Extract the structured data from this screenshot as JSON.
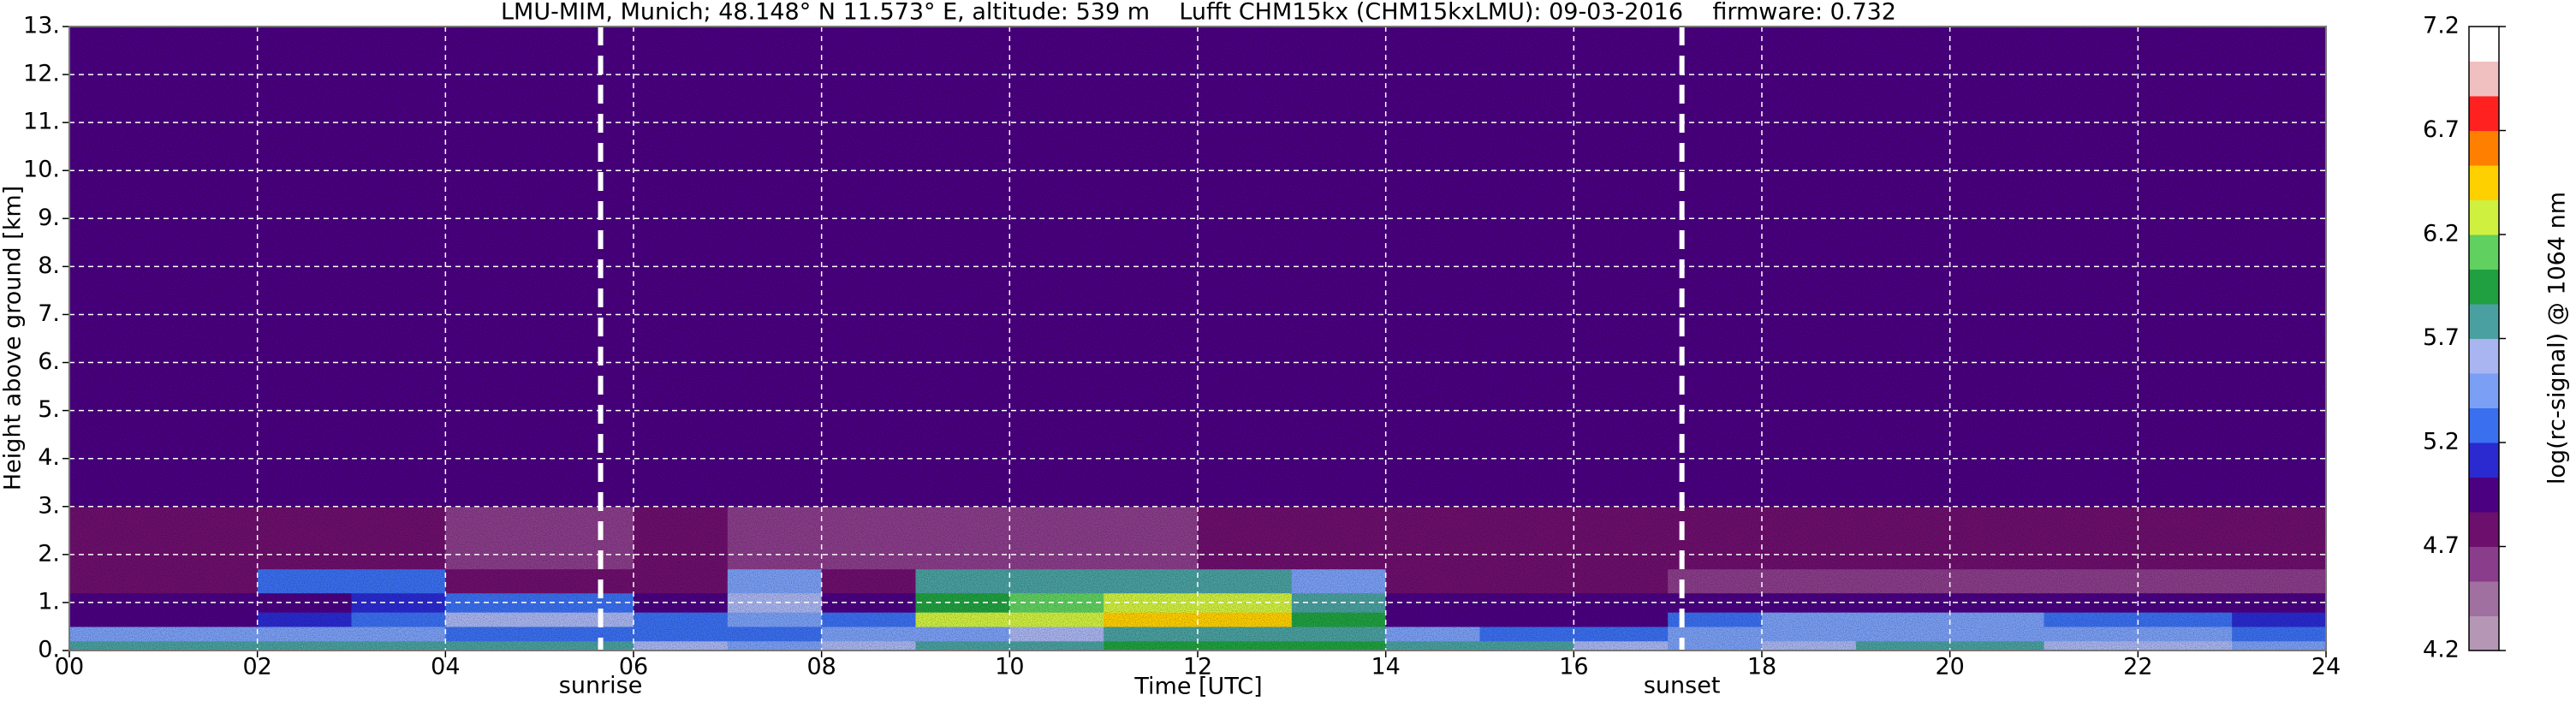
{
  "chart_data": {
    "type": "heatmap",
    "title": "LMU-MIM, Munich; 48.148° N 11.573° E, altitude: 539 m    Lufft CHM15kx (CHM15kxLMU): 09-03-2016    firmware: 0.732",
    "xlabel": "Time [UTC]",
    "ylabel": "Height above ground [km]",
    "colorbar_label": "log(rc-signal) @ 1064 nm",
    "xlim": [
      0,
      24
    ],
    "xticks": [
      {
        "value": 0,
        "label": "00"
      },
      {
        "value": 2,
        "label": "02"
      },
      {
        "value": 4,
        "label": "04"
      },
      {
        "value": 6,
        "label": "06"
      },
      {
        "value": 8,
        "label": "08"
      },
      10,
      12,
      14,
      16,
      18,
      20,
      22,
      24
    ],
    "ylim": [
      0,
      13
    ],
    "yticks": [
      {
        "value": 0,
        "label": "0."
      },
      {
        "value": 1,
        "label": "1."
      },
      {
        "value": 2,
        "label": "2."
      },
      {
        "value": 3,
        "label": "3."
      },
      {
        "value": 4,
        "label": "4."
      },
      {
        "value": 5,
        "label": "5."
      },
      {
        "value": 6,
        "label": "6."
      },
      {
        "value": 7,
        "label": "7."
      },
      {
        "value": 8,
        "label": "8."
      },
      {
        "value": 9,
        "label": "9."
      },
      {
        "value": 10,
        "label": "10."
      },
      {
        "value": 11,
        "label": "11."
      },
      {
        "value": 12,
        "label": "12."
      },
      {
        "value": 13,
        "label": "13."
      }
    ],
    "clim": [
      4.2,
      7.2
    ],
    "cticks": [
      4.2,
      4.7,
      5.2,
      5.7,
      6.2,
      6.7,
      7.2
    ],
    "colormap": [
      "#b597b5",
      "#a070a0",
      "#8a3d8a",
      "#6d0f6d",
      "#4b0082",
      "#2a2ad0",
      "#3a6ff0",
      "#7a9ff5",
      "#a8b5f0",
      "#4aa0a0",
      "#20a040",
      "#60d060",
      "#d0f040",
      "#ffd000",
      "#ff8000",
      "#ff2020",
      "#f0c0c0",
      "#ffffff"
    ],
    "grid": true,
    "x": [
      0,
      1,
      2,
      3,
      4,
      5,
      6,
      7,
      8,
      9,
      10,
      11,
      12,
      13,
      14,
      15,
      16,
      17,
      18,
      19,
      20,
      21,
      22,
      23,
      24
    ],
    "y": [
      0,
      0.2,
      0.5,
      0.8,
      1.2,
      1.7,
      3,
      13
    ],
    "z": [
      [
        5.8,
        5.8,
        5.8,
        5.8,
        5.7,
        5.7,
        5.6,
        5.5,
        5.6,
        5.7,
        5.8,
        5.9,
        6.0,
        6.0,
        5.8,
        5.7,
        5.6,
        5.5,
        5.6,
        5.7,
        5.7,
        5.6,
        5.6,
        5.5
      ],
      [
        5.4,
        5.4,
        5.4,
        5.4,
        5.3,
        5.3,
        5.2,
        5.3,
        5.4,
        5.5,
        5.6,
        5.7,
        5.8,
        5.7,
        5.4,
        5.3,
        5.2,
        5.4,
        5.5,
        5.5,
        5.5,
        5.4,
        5.4,
        5.3
      ],
      [
        5.0,
        5.0,
        5.1,
        5.2,
        5.6,
        5.6,
        5.3,
        5.5,
        5.3,
        6.2,
        6.3,
        6.4,
        6.4,
        6.0,
        5.0,
        4.9,
        4.9,
        5.3,
        5.4,
        5.4,
        5.4,
        5.3,
        5.2,
        5.1
      ],
      [
        4.9,
        4.9,
        5.0,
        5.1,
        5.3,
        5.2,
        5.0,
        5.6,
        5.0,
        6.0,
        6.1,
        6.2,
        6.2,
        5.8,
        4.9,
        4.9,
        4.9,
        4.9,
        4.9,
        4.9,
        4.9,
        4.9,
        4.9,
        4.9
      ],
      [
        4.7,
        4.8,
        5.3,
        5.3,
        4.8,
        4.7,
        4.7,
        5.4,
        4.7,
        5.7,
        5.7,
        5.8,
        5.8,
        5.4,
        4.7,
        4.7,
        4.7,
        4.6,
        4.6,
        4.6,
        4.6,
        4.6,
        4.6,
        4.6
      ],
      [
        4.7,
        4.7,
        4.7,
        4.7,
        4.6,
        4.6,
        4.7,
        4.6,
        4.6,
        4.6,
        4.6,
        4.6,
        4.7,
        4.7,
        4.7,
        4.7,
        4.7,
        4.7,
        4.7,
        4.7,
        4.7,
        4.7,
        4.7,
        4.7
      ],
      [
        5.0,
        5.0,
        5.0,
        5.0,
        5.0,
        5.0,
        5.0,
        5.0,
        5.0,
        5.0,
        5.0,
        5.0,
        5.0,
        5.0,
        5.0,
        5.0,
        5.0,
        5.0,
        5.0,
        5.0,
        5.0,
        5.0,
        5.0,
        5.0
      ]
    ],
    "events": [
      {
        "label": "sunrise",
        "x": 5.65
      },
      {
        "label": "sunset",
        "x": 17.15
      }
    ]
  }
}
